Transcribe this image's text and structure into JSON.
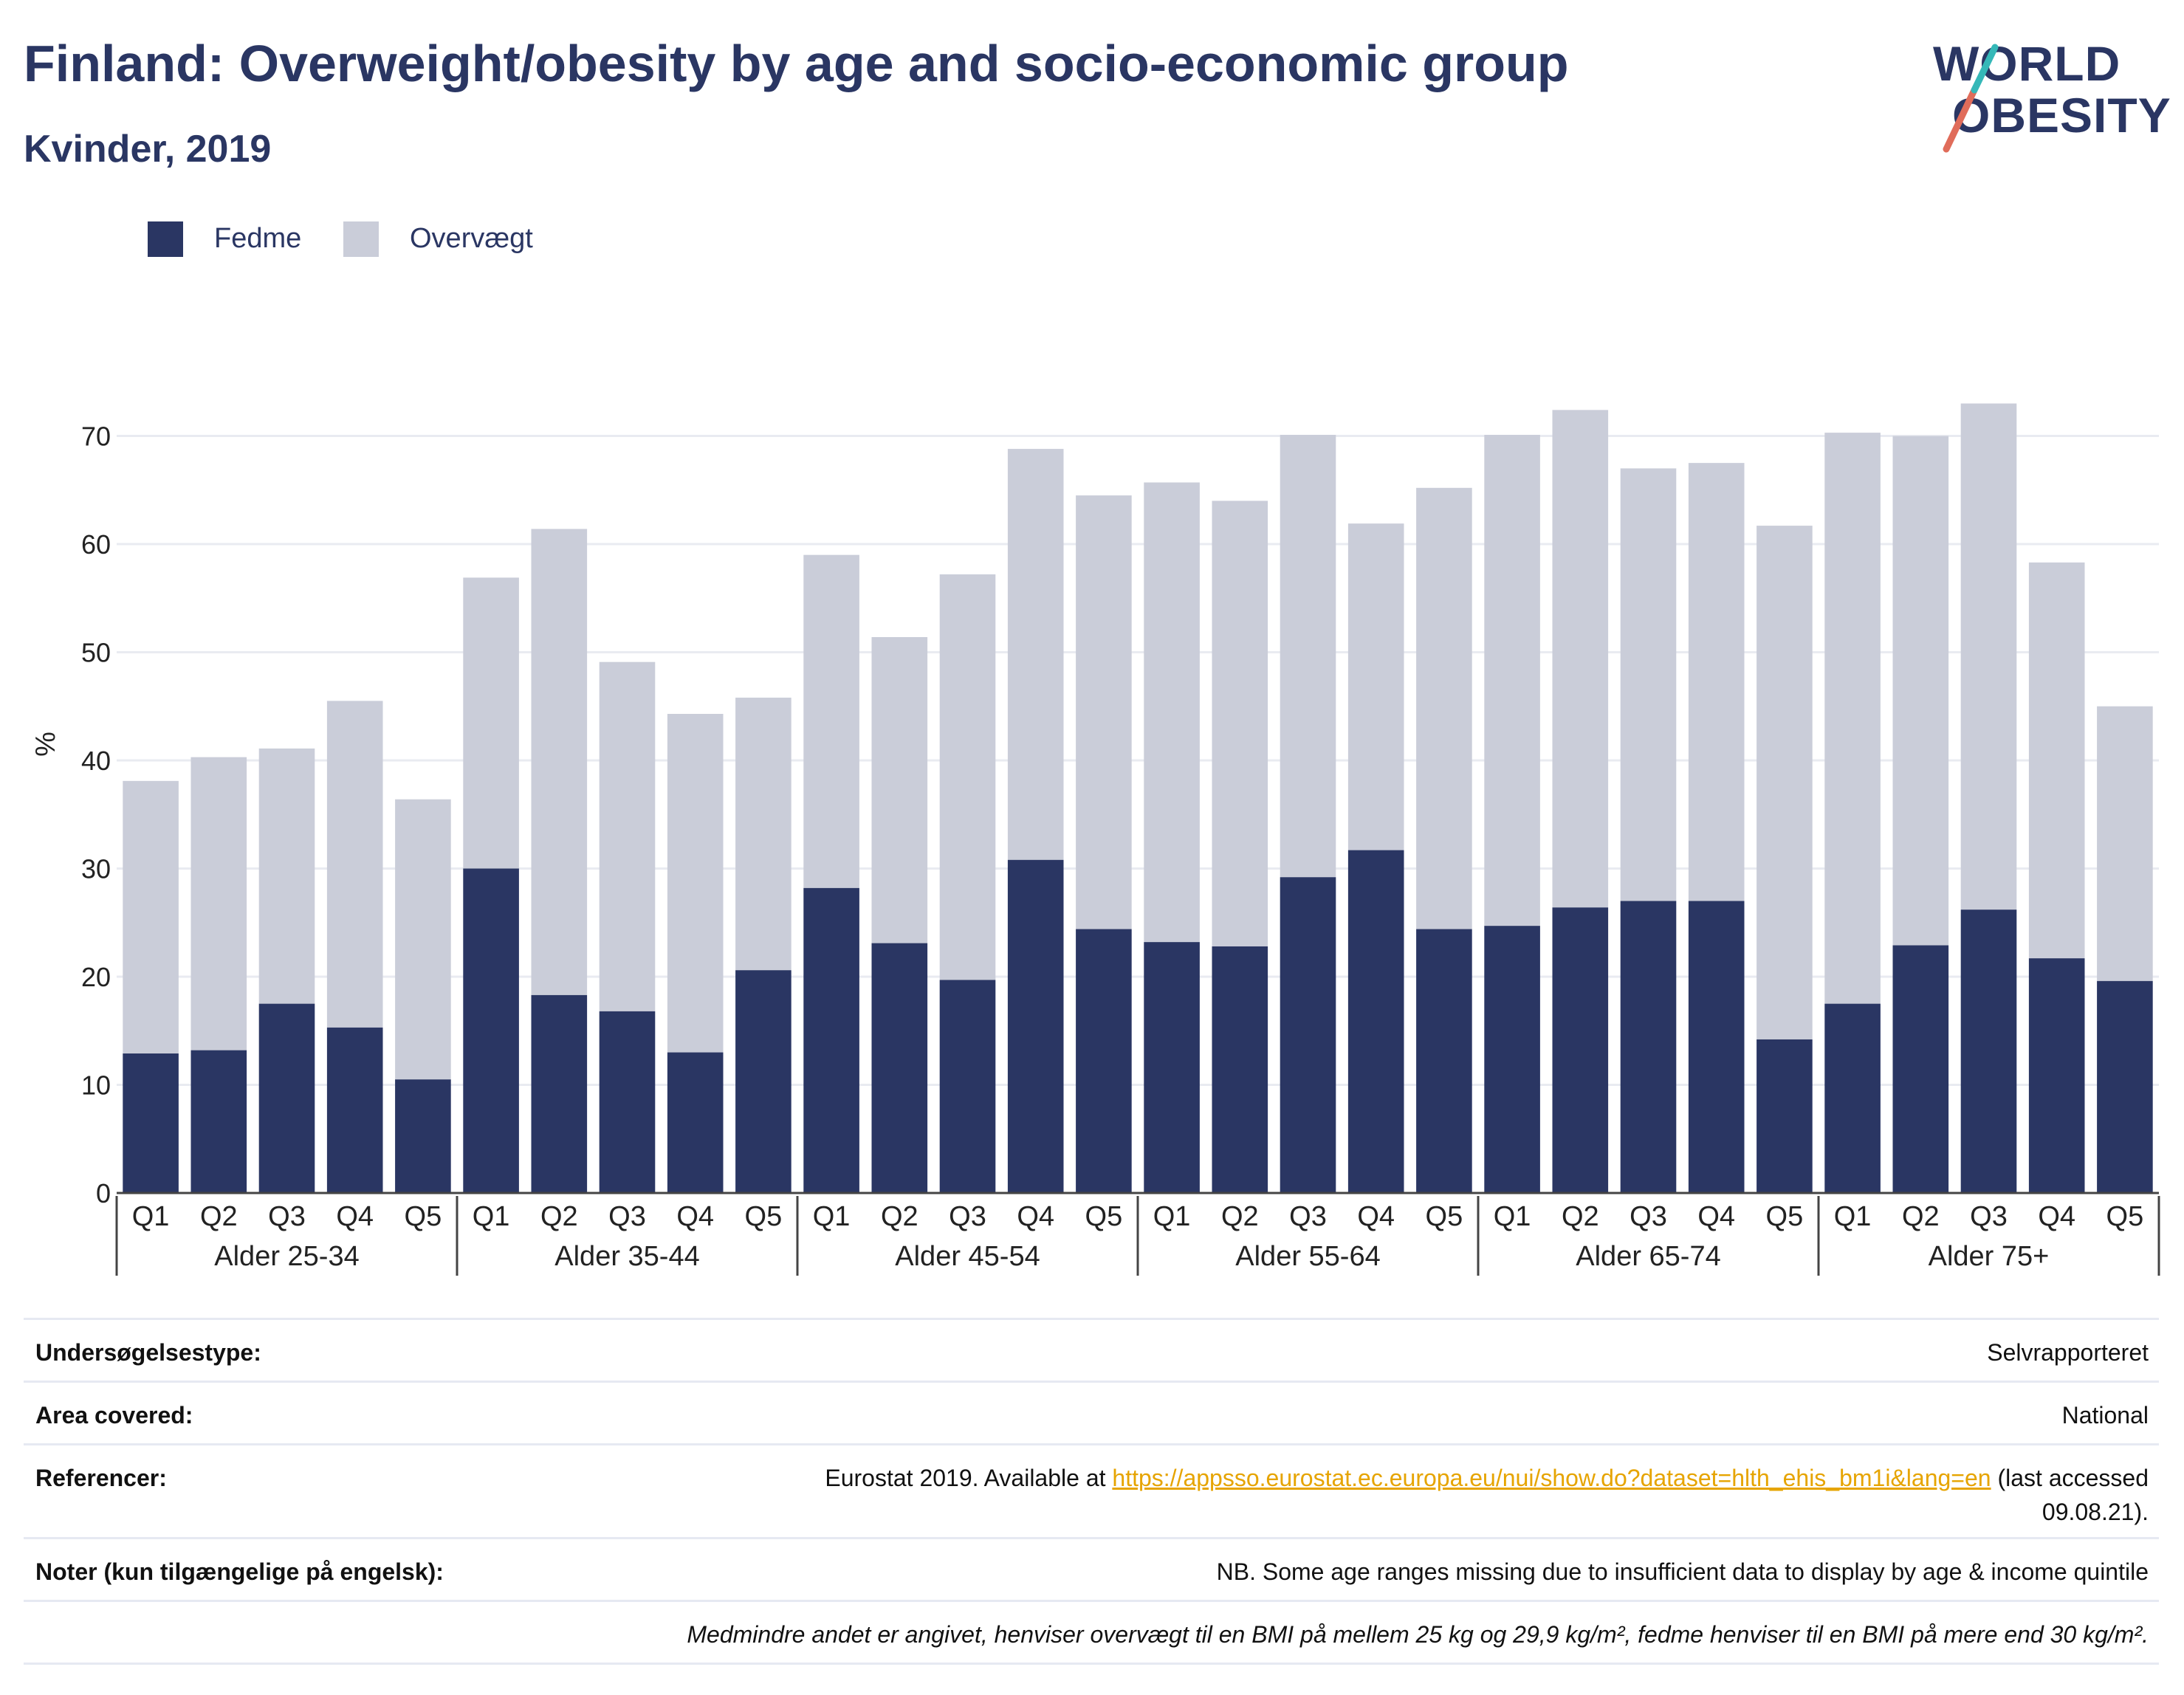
{
  "title": "Finland: Overweight/obesity by age and socio-economic group",
  "subtitle": "Kvinder, 2019",
  "logo": {
    "line1": "WORLD",
    "line2": "OBESITY"
  },
  "legend": [
    {
      "label": "Fedme",
      "color": "#2a3663"
    },
    {
      "label": "Overvægt",
      "color": "#cacdd9"
    }
  ],
  "chart_data": {
    "type": "bar",
    "stacked": true,
    "ylabel": "%",
    "ylim": [
      0,
      74
    ],
    "yticks": [
      0,
      10,
      20,
      30,
      40,
      50,
      60,
      70
    ],
    "grid": true,
    "legend_position": "top-left",
    "groups": [
      "Alder 25-34",
      "Alder 35-44",
      "Alder 45-54",
      "Alder 55-64",
      "Alder 65-74",
      "Alder 75+"
    ],
    "subcategories": [
      "Q1",
      "Q2",
      "Q3",
      "Q4",
      "Q5"
    ],
    "series": [
      {
        "name": "Fedme",
        "color": "#2a3663",
        "values": [
          12.9,
          13.2,
          17.5,
          15.3,
          10.5,
          30.0,
          18.3,
          16.8,
          13.0,
          20.6,
          28.2,
          23.1,
          19.7,
          30.8,
          24.4,
          23.2,
          22.8,
          29.2,
          31.7,
          24.4,
          24.7,
          26.4,
          27.0,
          27.0,
          14.2,
          17.5,
          22.9,
          26.2,
          21.7,
          19.6
        ]
      },
      {
        "name": "Overvægt",
        "color": "#cacdd9",
        "values": [
          25.2,
          27.1,
          23.6,
          30.2,
          25.9,
          26.9,
          43.1,
          32.3,
          31.3,
          25.2,
          30.8,
          28.3,
          37.5,
          38.0,
          40.1,
          42.5,
          41.2,
          40.9,
          30.2,
          40.8,
          45.4,
          46.0,
          40.0,
          40.5,
          47.5,
          52.8,
          47.1,
          46.8,
          36.6,
          25.4
        ]
      }
    ]
  },
  "info": {
    "survey_type_label": "Undersøgelsestype:",
    "survey_type_value": "Selvrapporteret",
    "area_label": "Area covered:",
    "area_value": "National",
    "ref_label": "Referencer:",
    "ref_prefix": "Eurostat 2019. Available at ",
    "ref_link": "https://appsso.eurostat.ec.europa.eu/nui/show.do?dataset=hlth_ehis_bm1i&lang=en",
    "ref_suffix": " (last accessed",
    "ref_line2": "09.08.21).",
    "notes_label": "Noter (kun tilgængelige på engelsk):",
    "notes_value": "NB. Some age ranges missing due to insufficient data to display by age & income quintile",
    "footnote": "Medmindre andet er angivet, henviser overvægt til en BMI på mellem 25 kg og 29,9 kg/m², fedme henviser til en BMI på mere end 30 kg/m²."
  }
}
